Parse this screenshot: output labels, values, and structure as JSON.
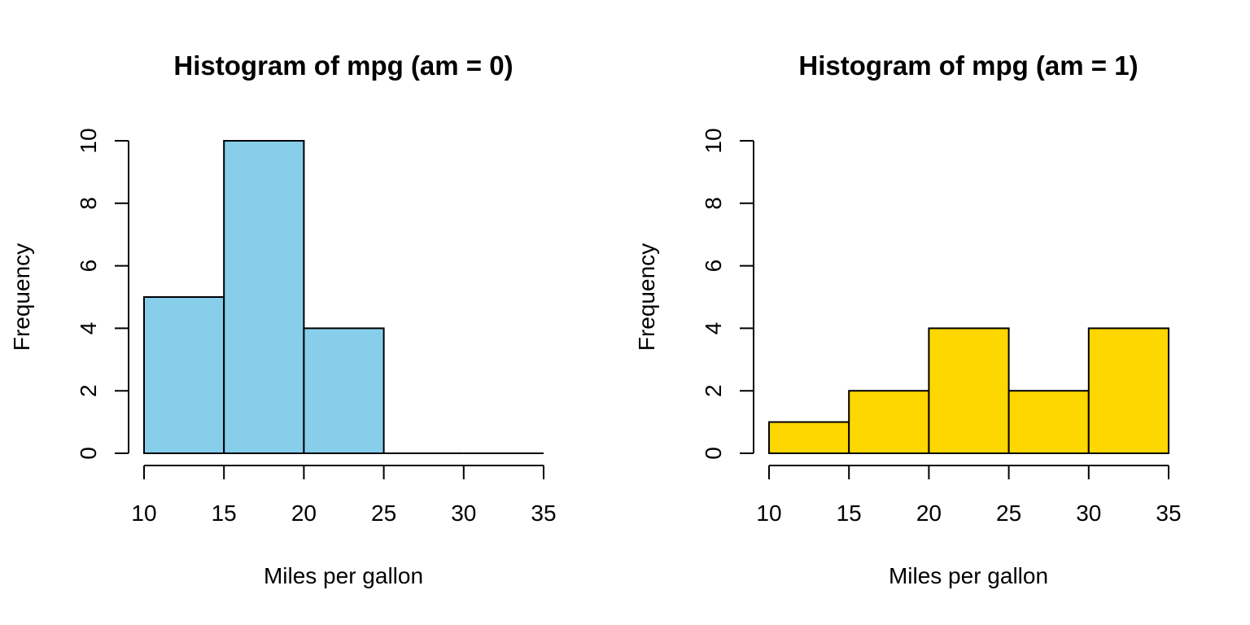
{
  "chart_data": [
    {
      "type": "bar",
      "title": "Histogram of mpg (am = 0)",
      "xlabel": "Miles per gallon",
      "ylabel": "Frequency",
      "bin_edges": [
        10,
        15,
        20,
        25,
        30,
        35
      ],
      "values": [
        5,
        10,
        4,
        0,
        0
      ],
      "xlim": [
        10,
        35
      ],
      "ylim": [
        0,
        10
      ],
      "xticks": [
        10,
        15,
        20,
        25,
        30,
        35
      ],
      "yticks": [
        0,
        2,
        4,
        6,
        8,
        10
      ],
      "bar_color": "#87CEEB",
      "grid": false,
      "legend": "none"
    },
    {
      "type": "bar",
      "title": "Histogram of mpg (am = 1)",
      "xlabel": "Miles per gallon",
      "ylabel": "Frequency",
      "bin_edges": [
        10,
        15,
        20,
        25,
        30,
        35
      ],
      "values": [
        1,
        2,
        4,
        2,
        4
      ],
      "xlim": [
        10,
        35
      ],
      "ylim": [
        0,
        10
      ],
      "xticks": [
        10,
        15,
        20,
        25,
        30,
        35
      ],
      "yticks": [
        0,
        2,
        4,
        6,
        8,
        10
      ],
      "bar_color": "#FFD700",
      "grid": false,
      "legend": "none"
    }
  ]
}
